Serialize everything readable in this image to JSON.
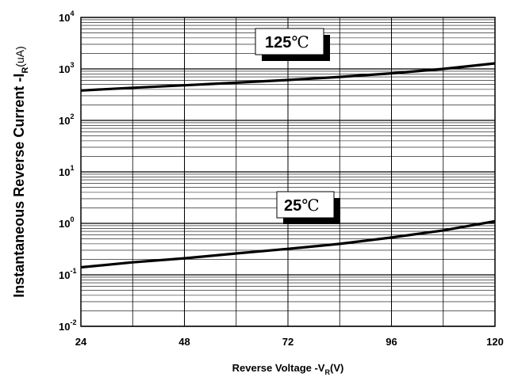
{
  "chart_data": {
    "type": "line",
    "xlabel": {
      "main": "Reverse  Voltage -V",
      "sub": "R",
      "tail": "(V)"
    },
    "ylabel": {
      "main": "Instantaneous Reverse Current -I",
      "sub": "R",
      "tail": "(uA)"
    },
    "x_ticks": [
      "24",
      "48",
      "72",
      "96",
      "120"
    ],
    "y_ticks": [
      {
        "base": "10",
        "exp": "-2"
      },
      {
        "base": "10",
        "exp": "-1"
      },
      {
        "base": "10",
        "exp": "0"
      },
      {
        "base": "10",
        "exp": "1"
      },
      {
        "base": "10",
        "exp": "2"
      },
      {
        "base": "10",
        "exp": "3"
      },
      {
        "base": "10",
        "exp": "4"
      }
    ],
    "xlim": [
      24,
      120
    ],
    "ylim": [
      0.01,
      10000
    ],
    "y_scale": "log",
    "grid": true,
    "series": [
      {
        "name": "125℃",
        "x": [
          24,
          36,
          48,
          60,
          72,
          84,
          96,
          108,
          120
        ],
        "y": [
          380,
          430,
          480,
          540,
          610,
          700,
          820,
          1000,
          1280
        ]
      },
      {
        "name": "25℃",
        "x": [
          24,
          36,
          48,
          60,
          72,
          84,
          96,
          108,
          120
        ],
        "y": [
          0.14,
          0.175,
          0.21,
          0.26,
          0.32,
          0.4,
          0.53,
          0.73,
          1.1
        ]
      }
    ],
    "annotations": [
      {
        "text": "125",
        "unit": "℃",
        "series": "125℃"
      },
      {
        "text": "25",
        "unit": "℃",
        "series": "25℃"
      }
    ]
  }
}
